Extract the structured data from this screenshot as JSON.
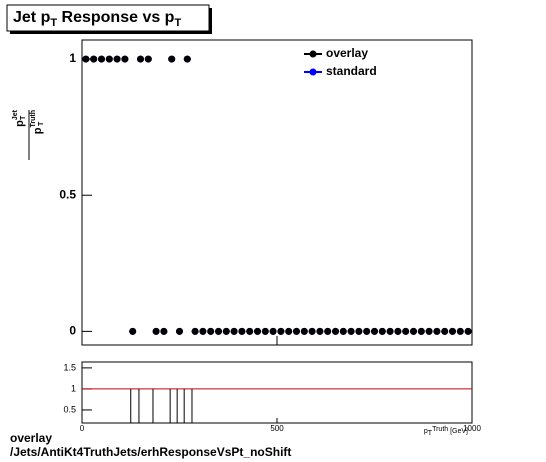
{
  "chart_data": [
    {
      "type": "scatter",
      "title_parts": [
        "Jet p",
        "T",
        " Response vs p",
        "T"
      ],
      "ylabel_parts": {
        "num": "p",
        "num_sub": "T",
        "num_sup": "Jet",
        "den": "p",
        "den_sub": "T",
        "den_sup": "Truth"
      },
      "x": [
        10,
        30,
        50,
        70,
        90,
        110,
        130,
        150,
        170,
        190,
        210,
        230,
        250,
        270,
        290,
        310,
        330,
        350,
        370,
        390,
        410,
        430,
        450,
        470,
        490,
        510,
        530,
        550,
        570,
        590,
        610,
        630,
        650,
        670,
        690,
        710,
        730,
        750,
        770,
        790,
        810,
        830,
        850,
        870,
        890,
        910,
        930,
        950,
        970,
        990
      ],
      "series": [
        {
          "name": "standard",
          "color": "#0000ff",
          "values": [
            1,
            1,
            1,
            1,
            1,
            1,
            0,
            1,
            1,
            0,
            0,
            1,
            0,
            1,
            0,
            0,
            0,
            0,
            0,
            0,
            0,
            0,
            0,
            0,
            0,
            0,
            0,
            0,
            0,
            0,
            0,
            0,
            0,
            0,
            0,
            0,
            0,
            0,
            0,
            0,
            0,
            0,
            0,
            0,
            0,
            0,
            0,
            0,
            0,
            0
          ]
        },
        {
          "name": "overlay",
          "color": "#000000",
          "values": [
            1,
            1,
            1,
            1,
            1,
            1,
            0,
            1,
            1,
            0,
            0,
            1,
            0,
            1,
            0,
            0,
            0,
            0,
            0,
            0,
            0,
            0,
            0,
            0,
            0,
            0,
            0,
            0,
            0,
            0,
            0,
            0,
            0,
            0,
            0,
            0,
            0,
            0,
            0,
            0,
            0,
            0,
            0,
            0,
            0,
            0,
            0,
            0,
            0,
            0
          ]
        }
      ],
      "legend_order": [
        1,
        0
      ],
      "xlim": [
        0,
        1000
      ],
      "xticks": [
        0,
        500,
        1000
      ],
      "ylim": [
        -0.05,
        1.07
      ],
      "yticks": [
        0,
        0.5,
        1
      ]
    },
    {
      "type": "ratio",
      "x": [
        125,
        146,
        182,
        226,
        244,
        262,
        282
      ],
      "values": [
        1,
        1,
        1,
        1,
        1,
        1,
        1
      ],
      "errors_low": [
        1,
        1,
        1,
        1,
        1,
        1,
        1
      ],
      "color": "#000000",
      "reference_line": 1,
      "reference_color": "#cc0000",
      "xlim": [
        0,
        1000
      ],
      "xticks": [
        0,
        500,
        1000
      ],
      "xlabel_parts": [
        "p",
        "T",
        "Truth",
        " [GeV]"
      ],
      "ylim": [
        0.19,
        1.64
      ],
      "yticks": [
        0.5,
        1,
        1.5
      ]
    }
  ],
  "footer": {
    "line1": "overlay",
    "line2": "/Jets/AntiKt4TruthJets/erhResponseVsPt_noShift"
  }
}
